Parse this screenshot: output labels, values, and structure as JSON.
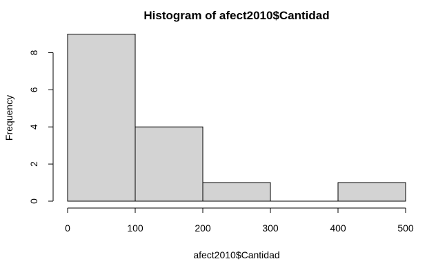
{
  "chart_data": {
    "type": "bar",
    "title": "Histogram of afect2010$Cantidad",
    "xlabel": "afect2010$Cantidad",
    "ylabel": "Frequency",
    "bins": [
      {
        "start": 0,
        "end": 100,
        "count": 9
      },
      {
        "start": 100,
        "end": 200,
        "count": 4
      },
      {
        "start": 200,
        "end": 300,
        "count": 1
      },
      {
        "start": 300,
        "end": 400,
        "count": 0
      },
      {
        "start": 400,
        "end": 500,
        "count": 1
      }
    ],
    "x_ticks": [
      0,
      100,
      200,
      300,
      400,
      500
    ],
    "y_ticks": [
      0,
      2,
      4,
      6,
      8
    ],
    "xlim": [
      0,
      500
    ],
    "ylim": [
      0,
      9
    ],
    "bar_fill": "#d3d3d3",
    "bar_stroke": "#000000",
    "grid": false
  }
}
